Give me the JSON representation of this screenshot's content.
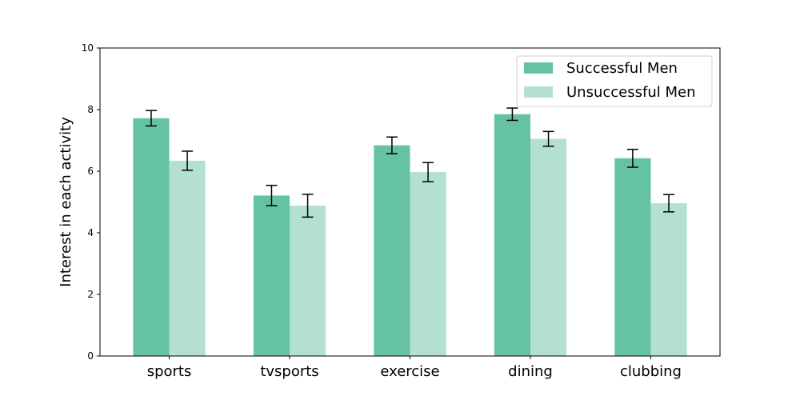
{
  "chart_data": {
    "type": "bar",
    "title": "",
    "xlabel": "",
    "ylabel": "Interest in each activity",
    "categories": [
      "sports",
      "tvsports",
      "exercise",
      "dining",
      "clubbing"
    ],
    "ylim": [
      0,
      10
    ],
    "yticks": [
      0,
      2,
      4,
      6,
      8,
      10
    ],
    "grid": false,
    "legend_position": "top-right",
    "series": [
      {
        "name": "Successful Men",
        "color": "#66c2a5",
        "values": [
          7.72,
          5.21,
          6.84,
          7.85,
          6.42
        ],
        "errors": [
          0.25,
          0.33,
          0.27,
          0.2,
          0.29
        ]
      },
      {
        "name": "Unsuccessful Men",
        "color": "#b3e0d2",
        "values": [
          6.34,
          4.88,
          5.97,
          7.05,
          4.96
        ],
        "errors": [
          0.31,
          0.37,
          0.31,
          0.24,
          0.28
        ]
      }
    ]
  }
}
